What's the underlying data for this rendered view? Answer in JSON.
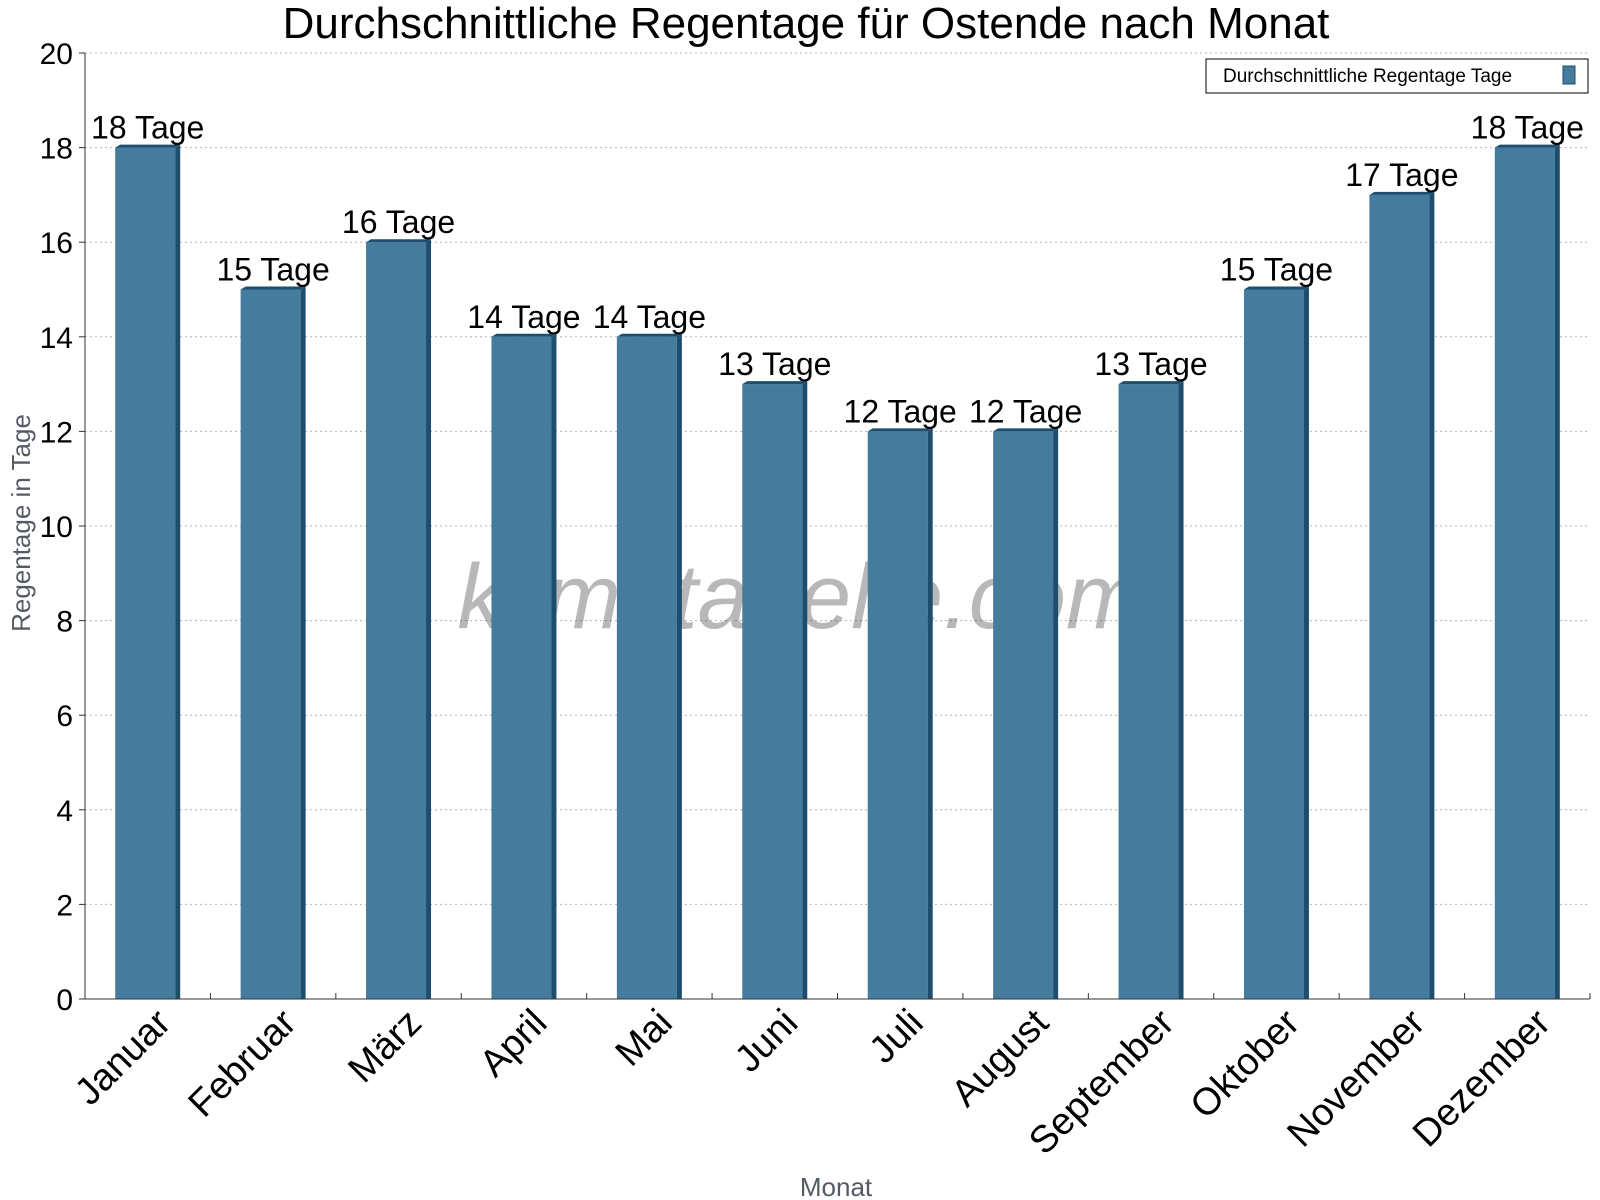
{
  "chart_data": {
    "type": "bar",
    "title": "Durchschnittliche Regentage für Ostende nach Monat",
    "xlabel": "Monat",
    "ylabel": "Regentage in Tage",
    "ylim": [
      0,
      20
    ],
    "yticks": [
      0,
      2,
      4,
      6,
      8,
      10,
      12,
      14,
      16,
      18,
      20
    ],
    "grid": true,
    "legend_position": "top-right",
    "categories": [
      "Januar",
      "Februar",
      "März",
      "April",
      "Mai",
      "Juni",
      "Juli",
      "August",
      "September",
      "Oktober",
      "November",
      "Dezember"
    ],
    "series": [
      {
        "name": "Durchschnittliche Regentage Tage",
        "values": [
          18,
          15,
          16,
          14,
          14,
          13,
          12,
          12,
          13,
          15,
          17,
          18
        ],
        "labels": [
          "18 Tage",
          "15 Tage",
          "16 Tage",
          "14 Tage",
          "14 Tage",
          "13 Tage",
          "12 Tage",
          "12 Tage",
          "13 Tage",
          "15 Tage",
          "17 Tage",
          "18 Tage"
        ],
        "color": "#457b9d",
        "side_color": "#1d4e6e"
      }
    ],
    "watermark": "klimatabelle.com"
  }
}
